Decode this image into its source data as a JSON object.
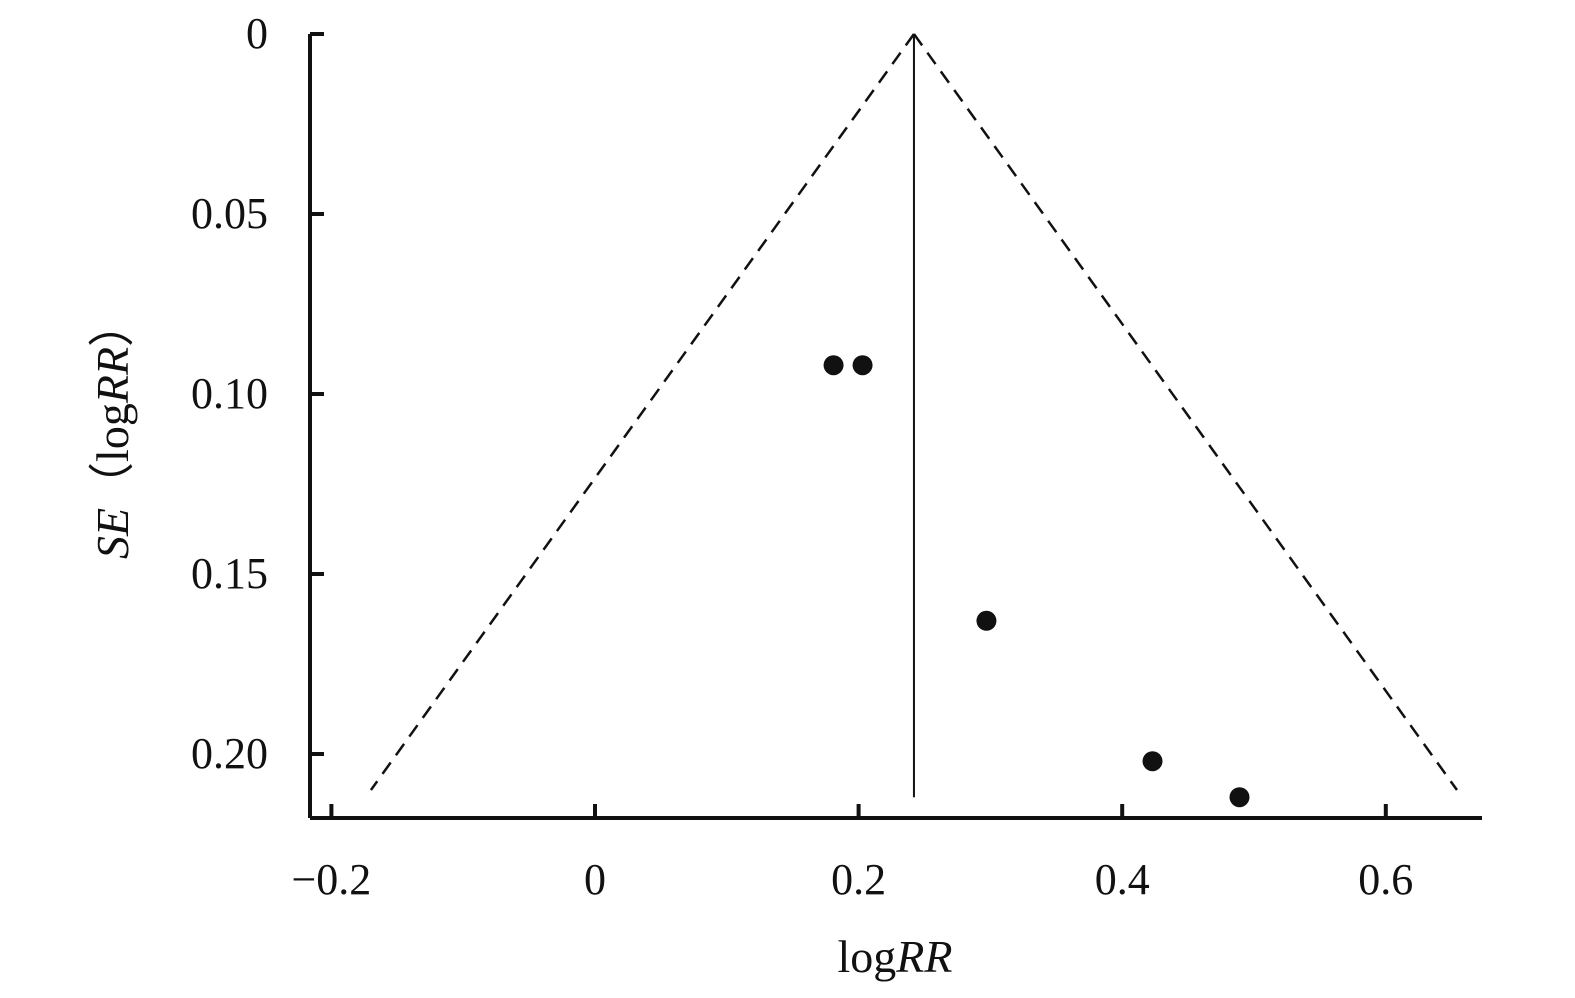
{
  "chart_data": {
    "type": "scatter",
    "subtype": "funnel plot",
    "xlabel": {
      "plain": "log",
      "italic": "RR"
    },
    "ylabel": {
      "italic_prefix": "SE",
      "paren_open": "（",
      "plain": "log",
      "italic": "RR",
      "paren_close": "）"
    },
    "xlim": [
      -0.215,
      0.675
    ],
    "ylim": [
      0,
      0.218
    ],
    "y_inverted": true,
    "xticks": [
      {
        "value": -0.2,
        "label": "−0.2"
      },
      {
        "value": 0,
        "label": "0"
      },
      {
        "value": 0.2,
        "label": "0.2"
      },
      {
        "value": 0.4,
        "label": "0.4"
      },
      {
        "value": 0.6,
        "label": "0.6"
      }
    ],
    "yticks": [
      {
        "value": 0,
        "label": "0"
      },
      {
        "value": 0.05,
        "label": "0.05"
      },
      {
        "value": 0.1,
        "label": "0.10"
      },
      {
        "value": 0.15,
        "label": "0.15"
      },
      {
        "value": 0.2,
        "label": "0.20"
      }
    ],
    "pooled_estimate": 0.242,
    "funnel_limits": {
      "style": "dashed",
      "apex": {
        "x": 0.242,
        "y": 0
      },
      "left_end": {
        "x": -0.17,
        "y": 0.21
      },
      "right_end": {
        "x": 0.654,
        "y": 0.21
      }
    },
    "points": [
      {
        "x": 0.181,
        "y": 0.092
      },
      {
        "x": 0.203,
        "y": 0.092
      },
      {
        "x": 0.297,
        "y": 0.163
      },
      {
        "x": 0.423,
        "y": 0.202
      },
      {
        "x": 0.489,
        "y": 0.212
      }
    ],
    "grid": false,
    "colors": {
      "ink": "#111111",
      "background": "#ffffff"
    }
  }
}
